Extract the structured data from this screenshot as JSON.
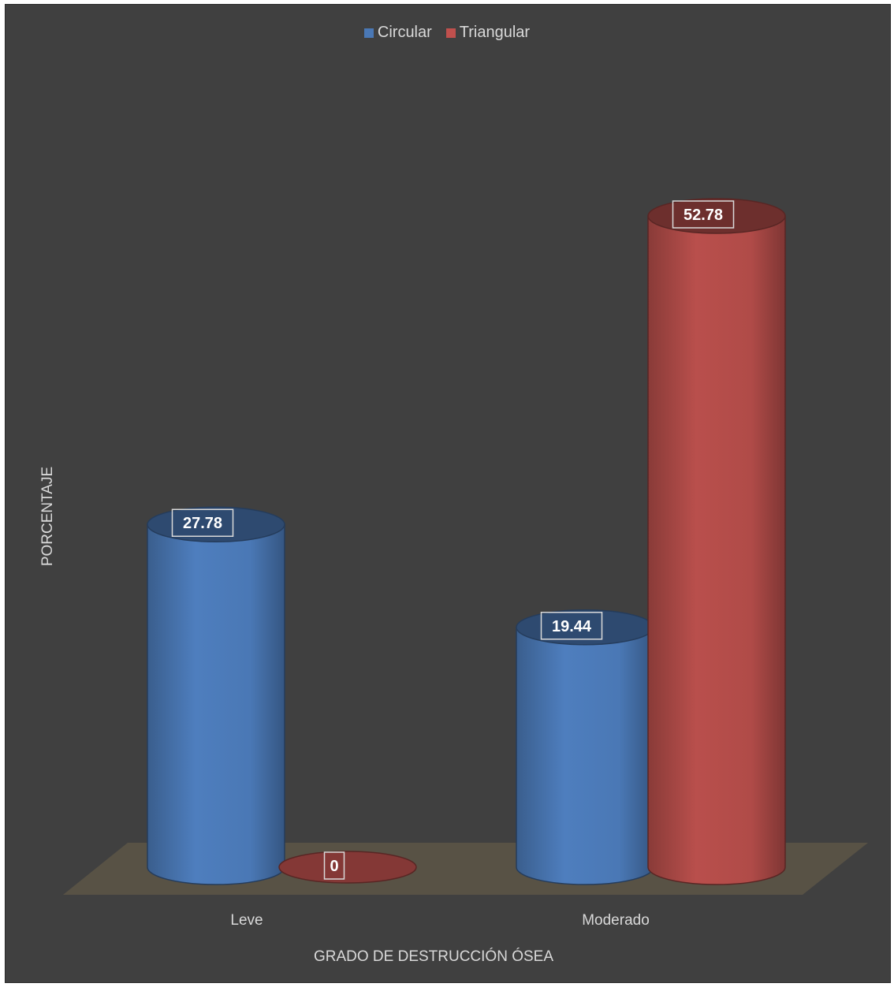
{
  "chart_data": {
    "type": "bar",
    "style": "3d-cylinder",
    "categories": [
      "Leve",
      "Moderado"
    ],
    "series": [
      {
        "name": "Circular",
        "values": [
          27.78,
          19.44
        ],
        "color": "#4a78b5"
      },
      {
        "name": "Triangular",
        "values": [
          0,
          52.78
        ],
        "color": "#b04b48"
      }
    ],
    "xlabel": "GRADO DE DESTRUCCIÓN ÓSEA",
    "ylabel": "PORCENTAJE",
    "ylim": [
      0,
      60
    ],
    "grid": false,
    "legend_position": "top",
    "background_color": "#404040",
    "floor_color": "#585245"
  }
}
